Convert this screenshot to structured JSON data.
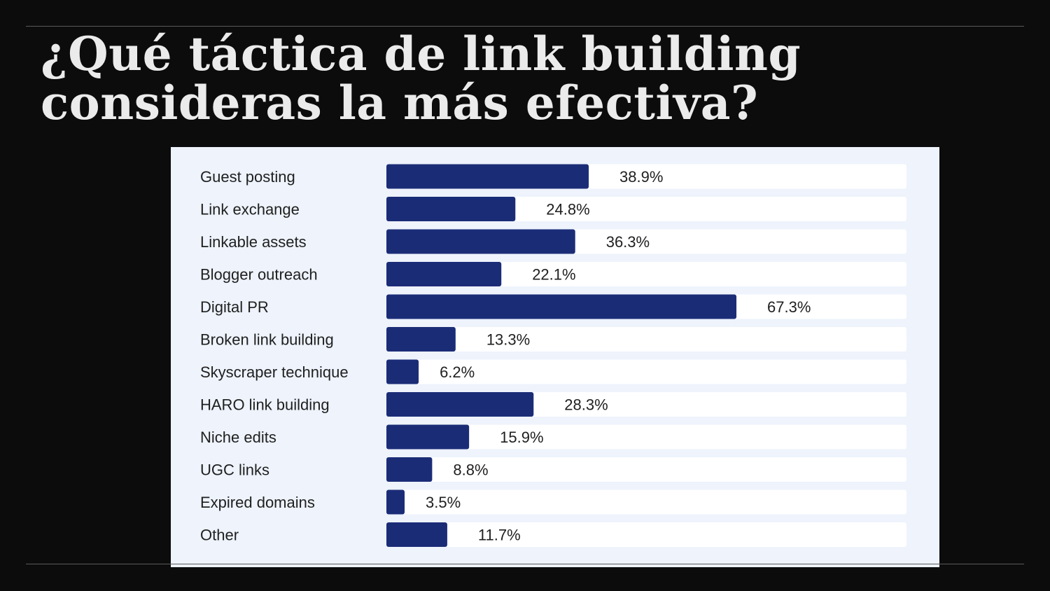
{
  "slide": {
    "title_line1": "¿Qué táctica de link building",
    "title_line2": "consideras la más efectiva?"
  },
  "chart_data": {
    "type": "bar",
    "orientation": "horizontal",
    "categories": [
      "Guest posting",
      "Link exchange",
      "Linkable assets",
      "Blogger outreach",
      "Digital PR",
      "Broken link building",
      "Skyscraper technique",
      "HARO link building",
      "Niche edits",
      "UGC links",
      "Expired domains",
      "Other"
    ],
    "values": [
      38.9,
      24.8,
      36.3,
      22.1,
      67.3,
      13.3,
      6.2,
      28.3,
      15.9,
      8.8,
      3.5,
      11.7
    ],
    "value_labels": [
      "38.9%",
      "24.8%",
      "36.3%",
      "22.1%",
      "67.3%",
      "13.3%",
      "6.2%",
      "28.3%",
      "15.9%",
      "8.8%",
      "3.5%",
      "11.7%"
    ],
    "xlim": [
      0,
      100
    ],
    "unit": "%",
    "grid": false,
    "legend": "none",
    "colors": {
      "bar": "#1b2c77",
      "track": "#ffffff",
      "panel": "#eef3fc",
      "text": "#1f1f1f"
    }
  }
}
